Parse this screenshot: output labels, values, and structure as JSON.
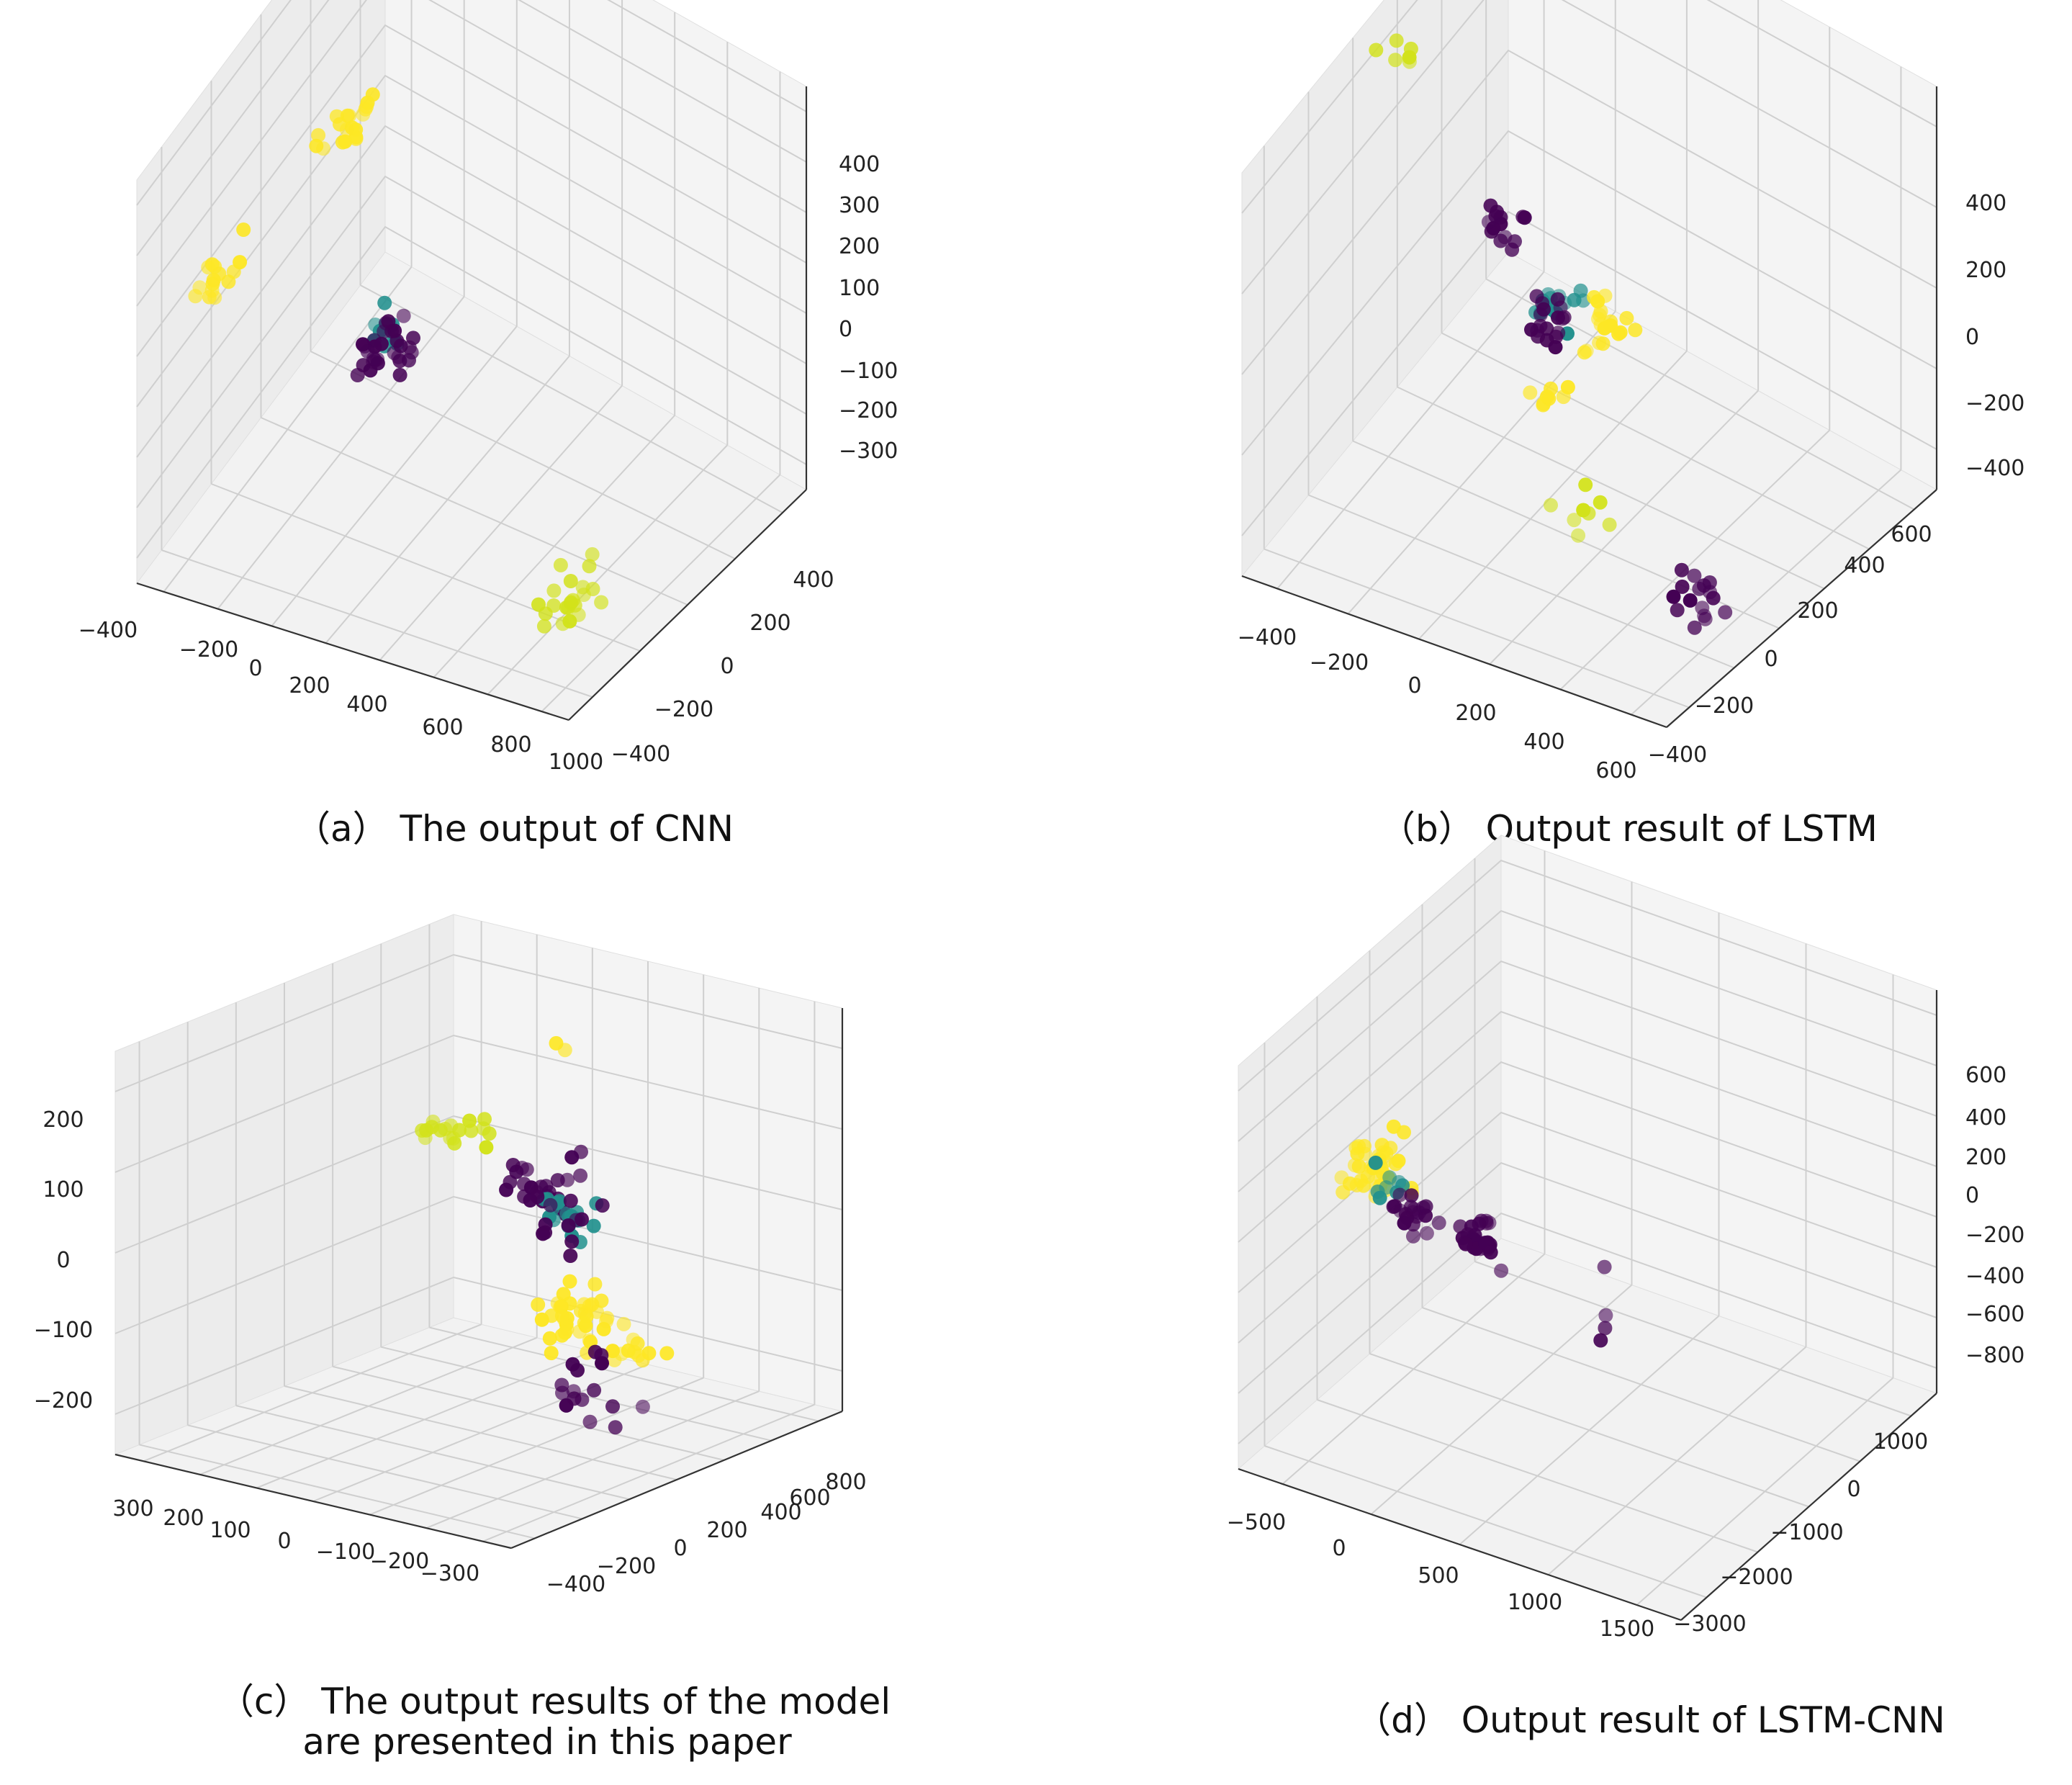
{
  "chart_data": [
    {
      "type": "scatter3d",
      "caption": [
        "（a） The output of CNN"
      ],
      "colors": {
        "purple": "#440154",
        "teal": "#21908d",
        "yellow": "#fde725",
        "lime": "#d2e21b"
      },
      "x_ticks": [
        "−400",
        "−200",
        "0",
        "200",
        "400",
        "600",
        "800",
        "1000"
      ],
      "y_ticks": [
        "−400",
        "−200",
        "0",
        "200",
        "400"
      ],
      "z_ticks": [
        "400",
        "300",
        "200",
        "100",
        "0",
        "−100",
        "−200",
        "−300"
      ],
      "clusters": [
        {
          "name": "yellow-top",
          "color": "yellow",
          "x": -200,
          "y": 350,
          "z": 330,
          "spread": 40,
          "n": 16
        },
        {
          "name": "yellow-left",
          "color": "yellow",
          "x": -400,
          "y": -300,
          "z": 50,
          "spread": 45,
          "n": 20
        },
        {
          "name": "teal",
          "color": "teal",
          "x": 0,
          "y": 0,
          "z": -50,
          "spread": 40,
          "n": 14
        },
        {
          "name": "purple",
          "color": "purple",
          "x": 50,
          "y": 30,
          "z": -50,
          "spread": 50,
          "n": 30
        },
        {
          "name": "lime-right",
          "color": "lime",
          "x": 900,
          "y": 300,
          "z": -150,
          "spread": 60,
          "n": 22
        }
      ]
    },
    {
      "type": "scatter3d",
      "caption": [
        "（b） Output result of LSTM"
      ],
      "x_ticks": [
        "−400",
        "−200",
        "0",
        "200",
        "400",
        "600"
      ],
      "y_ticks": [
        "−400",
        "−200",
        "0",
        "200",
        "400",
        "600"
      ],
      "z_ticks": [
        "400",
        "200",
        "0",
        "−200",
        "−400"
      ],
      "clusters": [
        {
          "name": "lime-top",
          "color": "lime",
          "x": -400,
          "y": 0,
          "z": 400,
          "spread": 30,
          "n": 6
        },
        {
          "name": "lime-right",
          "color": "lime",
          "x": 400,
          "y": 600,
          "z": 50,
          "spread": 40,
          "n": 8
        },
        {
          "name": "purple-left",
          "color": "purple",
          "x": -300,
          "y": -200,
          "z": -150,
          "spread": 40,
          "n": 14
        },
        {
          "name": "teal",
          "color": "teal",
          "x": -100,
          "y": -100,
          "z": -200,
          "spread": 40,
          "n": 16
        },
        {
          "name": "yellow-mid",
          "color": "yellow",
          "x": -50,
          "y": -200,
          "z": -300,
          "spread": 50,
          "n": 18
        },
        {
          "name": "purple-center",
          "color": "purple",
          "x": 0,
          "y": 100,
          "z": -50,
          "spread": 40,
          "n": 18
        },
        {
          "name": "yellow-center",
          "color": "yellow",
          "x": 50,
          "y": 150,
          "z": -150,
          "spread": 40,
          "n": 8
        },
        {
          "name": "purple-right",
          "color": "purple",
          "x": 500,
          "y": 300,
          "z": -350,
          "spread": 40,
          "n": 16
        }
      ]
    },
    {
      "type": "scatter3d",
      "caption": [
        "（c） The output results of the model",
        "are presented in this paper"
      ],
      "x_ticks": [
        "300",
        "200",
        "100",
        "0",
        "−100",
        "−200",
        "−300"
      ],
      "y_ticks": [
        "−400",
        "−200",
        "0",
        "200",
        "400",
        "600",
        "800"
      ],
      "z_ticks": [
        "200",
        "100",
        "0",
        "−100",
        "−200"
      ],
      "clusters": [
        {
          "name": "lime-left",
          "color": "lime",
          "x": 250,
          "y": -300,
          "z": 50,
          "spread": 40,
          "n": 18
        },
        {
          "name": "purple-left",
          "color": "purple",
          "x": 100,
          "y": -250,
          "z": 20,
          "spread": 40,
          "n": 20
        },
        {
          "name": "teal",
          "color": "teal",
          "x": 0,
          "y": -100,
          "z": 20,
          "spread": 30,
          "n": 20
        },
        {
          "name": "yellow-bottom",
          "color": "yellow",
          "x": 50,
          "y": -300,
          "z": -180,
          "spread": 50,
          "n": 24
        },
        {
          "name": "yellow-small",
          "color": "yellow",
          "x": -100,
          "y": -100,
          "z": -150,
          "spread": 30,
          "n": 10
        },
        {
          "name": "yellow-right",
          "color": "yellow",
          "x": -150,
          "y": 200,
          "z": -50,
          "spread": 40,
          "n": 14
        },
        {
          "name": "purple-top",
          "color": "purple",
          "x": -200,
          "y": 400,
          "z": 150,
          "spread": 50,
          "n": 16
        },
        {
          "name": "purple-right",
          "color": "purple",
          "x": -250,
          "y": 400,
          "z": -100,
          "spread": 50,
          "n": 16
        },
        {
          "name": "yellow-top",
          "color": "yellow",
          "x": 50,
          "y": -200,
          "z": 230,
          "spread": 20,
          "n": 2
        }
      ]
    },
    {
      "type": "scatter3d",
      "caption": [
        "（d） Output result of LSTM-CNN"
      ],
      "x_ticks": [
        "−500",
        "0",
        "500",
        "1000",
        "1500"
      ],
      "y_ticks": [
        "−3000",
        "−2000",
        "−1000",
        "0",
        "1000"
      ],
      "z_ticks": [
        "600",
        "400",
        "200",
        "0",
        "−200",
        "−400",
        "−600",
        "−800"
      ],
      "clusters": [
        {
          "name": "yellow-cloud",
          "color": "yellow",
          "x": -200,
          "y": 0,
          "z": 300,
          "spread": 120,
          "n": 40
        },
        {
          "name": "teal",
          "color": "teal",
          "x": -100,
          "y": 0,
          "z": 250,
          "spread": 60,
          "n": 8
        },
        {
          "name": "purple-left",
          "color": "purple",
          "x": -150,
          "y": -500,
          "z": 0,
          "spread": 80,
          "n": 20
        },
        {
          "name": "purple-right",
          "color": "purple",
          "x": 200,
          "y": -300,
          "z": 50,
          "spread": 80,
          "n": 28
        },
        {
          "name": "outliers",
          "color": "purple",
          "x": 500,
          "y": -1000,
          "z": -300,
          "spread": 200,
          "n": 4
        }
      ]
    }
  ]
}
